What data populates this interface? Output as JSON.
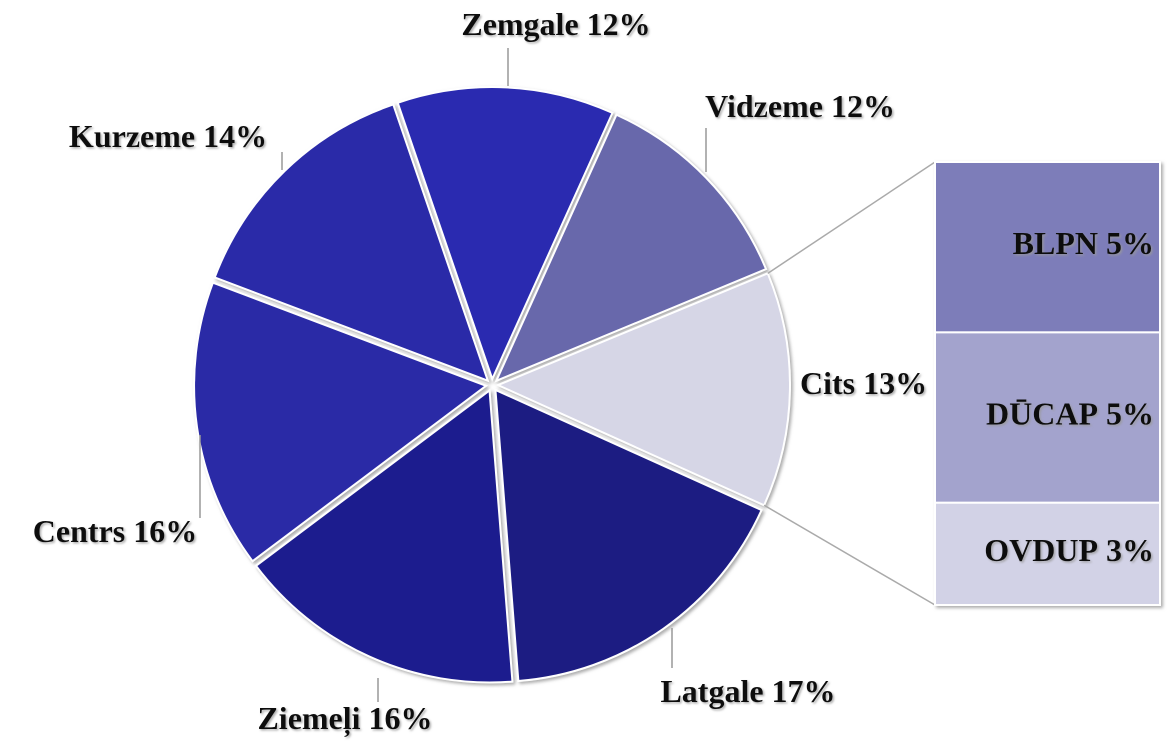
{
  "chart_data": {
    "type": "pie",
    "categories": [
      "Cits",
      "Latgale",
      "Ziemeļi",
      "Centrs",
      "Kurzeme",
      "Zemgale",
      "Vidzeme"
    ],
    "values": [
      13,
      17,
      16,
      16,
      14,
      12,
      12
    ],
    "value_labels": [
      "13%",
      "17%",
      "16%",
      "16%",
      "14%",
      "12%",
      "12%"
    ],
    "colors": [
      "#d6d6e6",
      "#1c1c82",
      "#1f1f8e",
      "#2929a6",
      "#2a2aa8",
      "#2b2bb0",
      "#6767ab"
    ],
    "breakdown": {
      "categories": [
        "BLPN",
        "DŪCAP",
        "OVDUP"
      ],
      "values": [
        5,
        5,
        3
      ],
      "value_labels": [
        "5%",
        "5%",
        "3%"
      ],
      "colors": [
        "#7d7db9",
        "#a3a3cd",
        "#d2d2e6"
      ]
    }
  }
}
